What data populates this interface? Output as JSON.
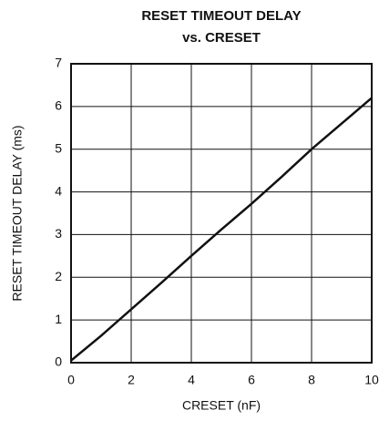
{
  "chart_data": {
    "type": "line",
    "title": "RESET TIMEOUT DELAY",
    "subtitle": "vs. CRESET",
    "x_label": "CRESET (nF)",
    "y_label": "RESET TIMEOUT DELAY (ms)",
    "x": [
      0,
      1,
      2,
      3,
      4,
      5,
      6,
      7,
      8,
      9,
      10
    ],
    "series": [
      {
        "color": "#111111",
        "values": [
          0.05,
          0.63,
          1.25,
          1.87,
          2.5,
          3.12,
          3.72,
          4.35,
          5.0,
          5.6,
          6.2
        ]
      }
    ],
    "xlim": [
      0,
      10
    ],
    "xticks": [
      0,
      2,
      4,
      6,
      8,
      10
    ],
    "ylim": [
      0,
      7
    ],
    "yticks": [
      0,
      1,
      2,
      3,
      4,
      5,
      6,
      7
    ],
    "grid": true
  }
}
